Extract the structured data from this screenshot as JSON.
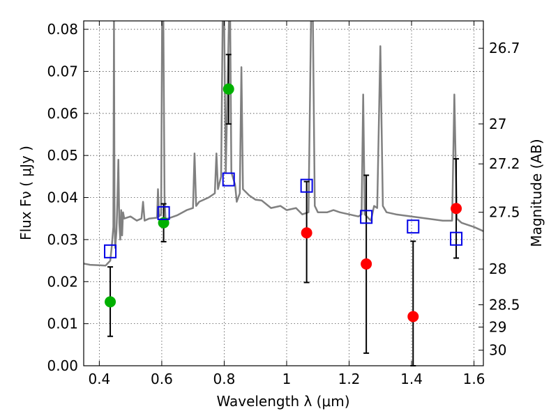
{
  "chart_data": {
    "type": "scatter",
    "xlabel": "Wavelength  λ (μm)",
    "ylabel": "Flux  Fν  ( μJy )",
    "y2label": "Magnitude (AB)",
    "xlim": [
      0.35,
      1.63
    ],
    "ylim": [
      0.0,
      0.082
    ],
    "x_ticks": [
      "0.4",
      "0.6",
      "0.8",
      "1",
      "1.2",
      "1.4",
      "1.6"
    ],
    "x_tick_values": [
      0.4,
      0.6,
      0.8,
      1.0,
      1.2,
      1.4,
      1.6
    ],
    "y_ticks": [
      "0.00",
      "0.01",
      "0.02",
      "0.03",
      "0.04",
      "0.05",
      "0.06",
      "0.07",
      "0.08"
    ],
    "y_tick_values": [
      0.0,
      0.01,
      0.02,
      0.03,
      0.04,
      0.05,
      0.06,
      0.07,
      0.08
    ],
    "y2_ticks": [
      {
        "label": "26.7",
        "flux": 0.0755
      },
      {
        "label": "27",
        "flux": 0.0575
      },
      {
        "label": "27.2",
        "flux": 0.048
      },
      {
        "label": "27.5",
        "flux": 0.0365
      },
      {
        "label": "28",
        "flux": 0.023
      },
      {
        "label": "28.5",
        "flux": 0.0145
      },
      {
        "label": "29",
        "flux": 0.0092
      },
      {
        "label": "30",
        "flux": 0.0037
      }
    ],
    "grid": true,
    "series": [
      {
        "marker": "circle",
        "color": "#00b000",
        "points": [
          {
            "x": 0.435,
            "y": 0.0152,
            "ylow": 0.007,
            "yhigh": 0.0235
          },
          {
            "x": 0.606,
            "y": 0.034,
            "ylow": 0.0295,
            "yhigh": 0.0385
          },
          {
            "x": 0.814,
            "y": 0.0658,
            "ylow": 0.0575,
            "yhigh": 0.074
          }
        ]
      },
      {
        "marker": "circle",
        "color": "#ff0000",
        "points": [
          {
            "x": 1.064,
            "y": 0.0316,
            "ylow": 0.0198,
            "yhigh": 0.0438
          },
          {
            "x": 1.255,
            "y": 0.0242,
            "ylow": 0.003,
            "yhigh": 0.0453
          },
          {
            "x": 1.405,
            "y": 0.0117,
            "ylow": 0.0,
            "yhigh": 0.0296
          },
          {
            "x": 1.543,
            "y": 0.0374,
            "ylow": 0.0256,
            "yhigh": 0.0492
          }
        ]
      },
      {
        "marker": "open-square",
        "color": "#0000e6",
        "points": [
          {
            "x": 0.435,
            "y": 0.0272
          },
          {
            "x": 0.606,
            "y": 0.0363
          },
          {
            "x": 0.814,
            "y": 0.0443
          },
          {
            "x": 1.064,
            "y": 0.0428
          },
          {
            "x": 1.255,
            "y": 0.0354
          },
          {
            "x": 1.405,
            "y": 0.0331
          },
          {
            "x": 1.543,
            "y": 0.0302
          }
        ]
      },
      {
        "type": "line",
        "color": "#808080",
        "points": [
          [
            0.35,
            0.0243
          ],
          [
            0.37,
            0.024
          ],
          [
            0.4,
            0.0239
          ],
          [
            0.42,
            0.0238
          ],
          [
            0.435,
            0.025
          ],
          [
            0.44,
            0.0285
          ],
          [
            0.445,
            0.033
          ],
          [
            0.447,
            0.082
          ],
          [
            0.449,
            0.033
          ],
          [
            0.451,
            0.028
          ],
          [
            0.455,
            0.032
          ],
          [
            0.458,
            0.039
          ],
          [
            0.461,
            0.049
          ],
          [
            0.464,
            0.034
          ],
          [
            0.467,
            0.03
          ],
          [
            0.47,
            0.037
          ],
          [
            0.473,
            0.031
          ],
          [
            0.476,
            0.0365
          ],
          [
            0.48,
            0.035
          ],
          [
            0.5,
            0.0355
          ],
          [
            0.52,
            0.0345
          ],
          [
            0.535,
            0.035
          ],
          [
            0.54,
            0.039
          ],
          [
            0.545,
            0.0345
          ],
          [
            0.56,
            0.035
          ],
          [
            0.585,
            0.0352
          ],
          [
            0.588,
            0.042
          ],
          [
            0.591,
            0.0355
          ],
          [
            0.598,
            0.036
          ],
          [
            0.601,
            0.082
          ],
          [
            0.605,
            0.082
          ],
          [
            0.609,
            0.04
          ],
          [
            0.612,
            0.035
          ],
          [
            0.62,
            0.035
          ],
          [
            0.65,
            0.0358
          ],
          [
            0.68,
            0.037
          ],
          [
            0.7,
            0.0375
          ],
          [
            0.705,
            0.0505
          ],
          [
            0.71,
            0.038
          ],
          [
            0.72,
            0.039
          ],
          [
            0.75,
            0.04
          ],
          [
            0.77,
            0.041
          ],
          [
            0.775,
            0.0505
          ],
          [
            0.78,
            0.042
          ],
          [
            0.79,
            0.045
          ],
          [
            0.795,
            0.082
          ],
          [
            0.8,
            0.082
          ],
          [
            0.805,
            0.046
          ],
          [
            0.815,
            0.082
          ],
          [
            0.819,
            0.082
          ],
          [
            0.823,
            0.046
          ],
          [
            0.835,
            0.043
          ],
          [
            0.84,
            0.039
          ],
          [
            0.85,
            0.041
          ],
          [
            0.855,
            0.071
          ],
          [
            0.86,
            0.042
          ],
          [
            0.88,
            0.0405
          ],
          [
            0.9,
            0.0395
          ],
          [
            0.92,
            0.0393
          ],
          [
            0.95,
            0.0375
          ],
          [
            0.98,
            0.038
          ],
          [
            1.0,
            0.037
          ],
          [
            1.03,
            0.0375
          ],
          [
            1.05,
            0.036
          ],
          [
            1.07,
            0.0365
          ],
          [
            1.078,
            0.082
          ],
          [
            1.084,
            0.082
          ],
          [
            1.09,
            0.038
          ],
          [
            1.1,
            0.0365
          ],
          [
            1.13,
            0.0365
          ],
          [
            1.15,
            0.037
          ],
          [
            1.17,
            0.0365
          ],
          [
            1.2,
            0.036
          ],
          [
            1.23,
            0.0355
          ],
          [
            1.24,
            0.036
          ],
          [
            1.245,
            0.0645
          ],
          [
            1.25,
            0.036
          ],
          [
            1.27,
            0.0345
          ],
          [
            1.28,
            0.038
          ],
          [
            1.29,
            0.0375
          ],
          [
            1.3,
            0.076
          ],
          [
            1.308,
            0.038
          ],
          [
            1.32,
            0.0365
          ],
          [
            1.35,
            0.036
          ],
          [
            1.4,
            0.0355
          ],
          [
            1.45,
            0.035
          ],
          [
            1.5,
            0.0345
          ],
          [
            1.53,
            0.0345
          ],
          [
            1.537,
            0.0645
          ],
          [
            1.545,
            0.035
          ],
          [
            1.56,
            0.034
          ],
          [
            1.58,
            0.0335
          ],
          [
            1.6,
            0.033
          ],
          [
            1.63,
            0.032
          ]
        ]
      }
    ]
  }
}
